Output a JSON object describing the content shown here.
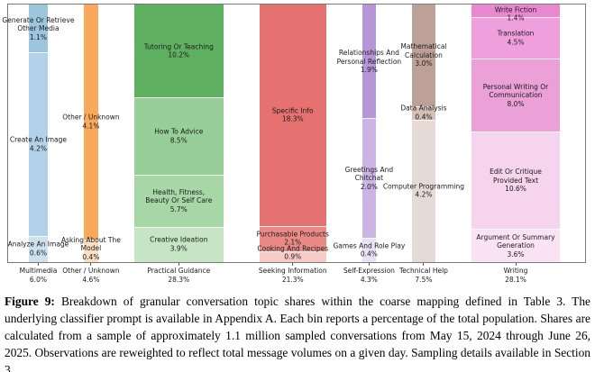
{
  "chart_data": {
    "type": "marimekko-stacked-bar",
    "unit": "percent of total population",
    "legend": "none",
    "grid": false,
    "columns": [
      {
        "name": "Multimedia",
        "total": 6.0,
        "total_label": "6.0%",
        "segments": [
          {
            "label": "Generate Or Retrieve\nOther Media",
            "value": 1.1,
            "pct_label": "1.1%",
            "color": "#9cc6de"
          },
          {
            "label": "Create An Image",
            "value": 4.2,
            "pct_label": "4.2%",
            "color": "#b1d2e8"
          },
          {
            "label": "Analyze An Image",
            "value": 0.6,
            "pct_label": "0.6%",
            "color": "#cde1ef"
          }
        ]
      },
      {
        "name": "Other / Unknown",
        "total": 4.6,
        "total_label": "4.6%",
        "segments": [
          {
            "label": "Other / Unknown",
            "value": 4.1,
            "pct_label": "4.1%",
            "color": "#f9a85c"
          },
          {
            "label": "Asking About The\nModel",
            "value": 0.4,
            "pct_label": "0.4%",
            "color": "#fadec2"
          }
        ]
      },
      {
        "name": "Practical Guidance",
        "total": 28.3,
        "total_label": "28.3%",
        "segments": [
          {
            "label": "Tutoring Or Teaching",
            "value": 10.2,
            "pct_label": "10.2%",
            "color": "#60b062"
          },
          {
            "label": "How To Advice",
            "value": 8.5,
            "pct_label": "8.5%",
            "color": "#98cf98"
          },
          {
            "label": "Health, Fitness,\nBeauty Or Self Care",
            "value": 5.7,
            "pct_label": "5.7%",
            "color": "#a8d7a7"
          },
          {
            "label": "Creative Ideation",
            "value": 3.9,
            "pct_label": "3.9%",
            "color": "#c6e5c4"
          }
        ]
      },
      {
        "name": "Seeking Information",
        "total": 21.3,
        "total_label": "21.3%",
        "segments": [
          {
            "label": "Specific Info",
            "value": 18.3,
            "pct_label": "18.3%",
            "color": "#e57170"
          },
          {
            "label": "Purchasable Products",
            "value": 2.1,
            "pct_label": "2.1%",
            "color": "#ea8a87"
          },
          {
            "label": "Cooking And Recipes",
            "value": 0.9,
            "pct_label": "0.9%",
            "color": "#f7cbc7"
          }
        ]
      },
      {
        "name": "Self-Expression",
        "total": 4.3,
        "total_label": "4.3%",
        "segments": [
          {
            "label": "Relationships And\nPersonal Reflection",
            "value": 1.9,
            "pct_label": "1.9%",
            "color": "#b596d7"
          },
          {
            "label": "Greetings And\nChitchat",
            "value": 2.0,
            "pct_label": "2.0%",
            "color": "#ccb4e5"
          },
          {
            "label": "Games And Role Play",
            "value": 0.4,
            "pct_label": "0.4%",
            "color": "#eae1f5"
          }
        ]
      },
      {
        "name": "Technical Help",
        "total": 7.5,
        "total_label": "7.5%",
        "segments": [
          {
            "label": "Mathematical\nCalculation",
            "value": 3.0,
            "pct_label": "3.0%",
            "color": "#bda098"
          },
          {
            "label": "Data Analysis",
            "value": 0.4,
            "pct_label": "0.4%",
            "color": "#d4bfb8"
          },
          {
            "label": "Computer Programming",
            "value": 4.2,
            "pct_label": "4.2%",
            "color": "#e5dad6"
          }
        ]
      },
      {
        "name": "Writing",
        "total": 28.1,
        "total_label": "28.1%",
        "segments": [
          {
            "label": "Write Fiction",
            "value": 1.4,
            "pct_label": "1.4%",
            "color": "#e987d0"
          },
          {
            "label": "Translation",
            "value": 4.5,
            "pct_label": "4.5%",
            "color": "#efa0dc"
          },
          {
            "label": "Personal Writing Or\nCommunication",
            "value": 8.0,
            "pct_label": "8.0%",
            "color": "#eca0d8"
          },
          {
            "label": "Edit Or Critique\nProvided Text",
            "value": 10.6,
            "pct_label": "10.6%",
            "color": "#f6d4ee"
          },
          {
            "label": "Argument Or Summary\nGeneration",
            "value": 3.6,
            "pct_label": "3.6%",
            "color": "#fae3f5"
          }
        ]
      }
    ]
  },
  "caption": {
    "figure_label": "Figure 9:",
    "text": "Breakdown of granular conversation topic shares within the coarse mapping defined in Table 3. The underlying classifier prompt is available in Appendix A. Each bin reports a percentage of the total population. Shares are calculated from a sample of approximately 1.1 million sampled conversations from May 15, 2024 through June 26, 2025. Observations are reweighted to reflect total message volumes on a given day. Sampling details available in Section 3."
  }
}
